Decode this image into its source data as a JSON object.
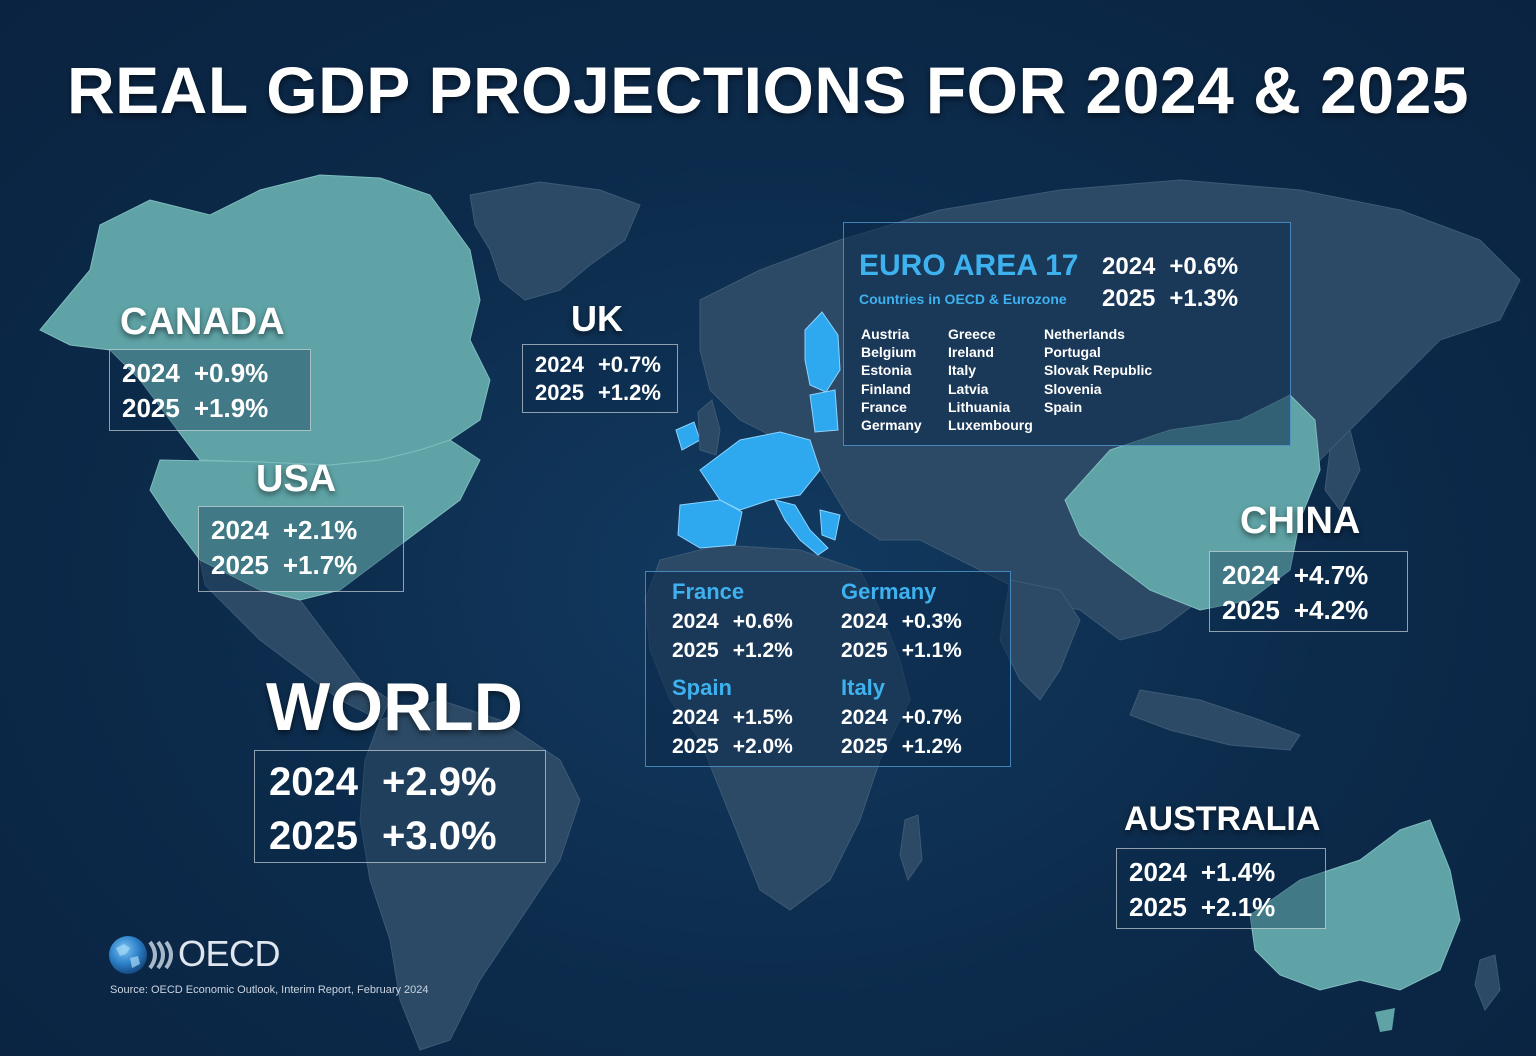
{
  "title": "REAL GDP PROJECTIONS FOR 2024 & 2025",
  "colors": {
    "background": "#0c2a4a",
    "land": "#2c4a66",
    "highlight_region": "#5fa3a6",
    "euro_area": "#2ea8ef",
    "accent_text": "#3eb1ef"
  },
  "regions": {
    "canada": {
      "name": "CANADA",
      "rows": [
        {
          "year": "2024",
          "value": "+0.9%"
        },
        {
          "year": "2025",
          "value": "+1.9%"
        }
      ]
    },
    "usa": {
      "name": "USA",
      "rows": [
        {
          "year": "2024",
          "value": "+2.1%"
        },
        {
          "year": "2025",
          "value": "+1.7%"
        }
      ]
    },
    "uk": {
      "name": "UK",
      "rows": [
        {
          "year": "2024",
          "value": "+0.7%"
        },
        {
          "year": "2025",
          "value": "+1.2%"
        }
      ]
    },
    "world": {
      "name": "WORLD",
      "rows": [
        {
          "year": "2024",
          "value": "+2.9%"
        },
        {
          "year": "2025",
          "value": "+3.0%"
        }
      ]
    },
    "china": {
      "name": "CHINA",
      "rows": [
        {
          "year": "2024",
          "value": "+4.7%"
        },
        {
          "year": "2025",
          "value": "+4.2%"
        }
      ]
    },
    "australia": {
      "name": "AUSTRALIA",
      "rows": [
        {
          "year": "2024",
          "value": "+1.4%"
        },
        {
          "year": "2025",
          "value": "+2.1%"
        }
      ]
    }
  },
  "euro_area": {
    "name": "EURO AREA 17",
    "subtitle": "Countries in OECD & Eurozone",
    "rows": [
      {
        "year": "2024",
        "value": "+0.6%"
      },
      {
        "year": "2025",
        "value": "+1.3%"
      }
    ],
    "member_columns": [
      [
        "Austria",
        "Belgium",
        "Estonia",
        "Finland",
        "France",
        "Germany"
      ],
      [
        "Greece",
        "Ireland",
        "Italy",
        "Latvia",
        "Lithuania",
        "Luxembourg"
      ],
      [
        "Netherlands",
        "Portugal",
        "Slovak Republic",
        "Slovenia",
        "Spain"
      ]
    ]
  },
  "euro_countries": [
    {
      "name": "France",
      "rows": [
        {
          "year": "2024",
          "value": "+0.6%"
        },
        {
          "year": "2025",
          "value": "+1.2%"
        }
      ]
    },
    {
      "name": "Germany",
      "rows": [
        {
          "year": "2024",
          "value": "+0.3%"
        },
        {
          "year": "2025",
          "value": "+1.1%"
        }
      ]
    },
    {
      "name": "Spain",
      "rows": [
        {
          "year": "2024",
          "value": "+1.5%"
        },
        {
          "year": "2025",
          "value": "+2.0%"
        }
      ]
    },
    {
      "name": "Italy",
      "rows": [
        {
          "year": "2024",
          "value": "+0.7%"
        },
        {
          "year": "2025",
          "value": "+1.2%"
        }
      ]
    }
  ],
  "footer": {
    "logo_text": "OECD",
    "source": "Source: OECD Economic Outlook, Interim Report, February 2024"
  }
}
